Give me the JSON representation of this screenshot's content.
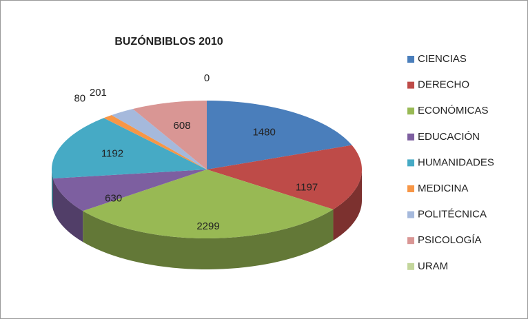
{
  "chart_data": {
    "type": "pie",
    "title": "BUZÓNBIBLOS 2010",
    "categories": [
      "CIENCIAS",
      "DERECHO",
      "ECONÓMICAS",
      "EDUCACIÓN",
      "HUMANIDADES",
      "MEDICINA",
      "POLITÉCNICA",
      "PSICOLOGÍA",
      "URAM"
    ],
    "values": [
      1480,
      1197,
      2299,
      630,
      1192,
      80,
      201,
      608,
      0
    ],
    "colors": [
      "#4a7ebb",
      "#be4b48",
      "#98b954",
      "#7d5fa0",
      "#46aac5",
      "#f79646",
      "#a5b9dc",
      "#d99694",
      "#c3d69b"
    ],
    "legend": "right"
  }
}
